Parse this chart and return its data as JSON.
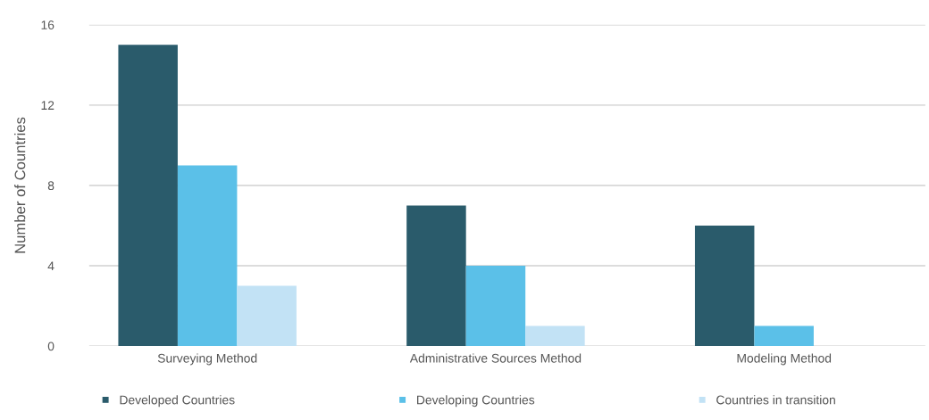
{
  "chart_data": {
    "type": "bar",
    "ylabel": "Number of Countries",
    "categories": [
      "Surveying Method",
      "Administrative Sources Method",
      "Modeling Method"
    ],
    "series": [
      {
        "name": "Developed Countries",
        "color": "#2a5b6b",
        "values": [
          15,
          7,
          6
        ]
      },
      {
        "name": "Developing Countries",
        "color": "#5bc0e8",
        "values": [
          9,
          4,
          1
        ]
      },
      {
        "name": "Countries in transition",
        "color": "#c2e2f5",
        "values": [
          3,
          1,
          0
        ]
      }
    ],
    "ylim": [
      0,
      16
    ],
    "yticks": [
      0,
      4,
      8,
      12,
      16
    ],
    "grid": "y",
    "legend": "bottom"
  }
}
